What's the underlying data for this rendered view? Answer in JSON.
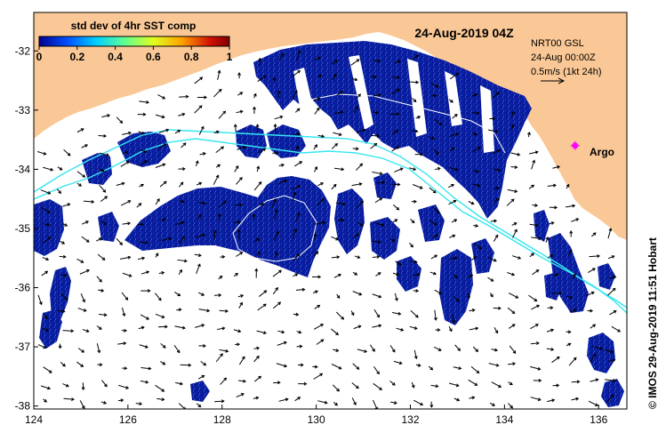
{
  "map": {
    "title": "24-Aug-2019 04Z",
    "colorbar": {
      "label": "std dev of 4hr SST comp",
      "ticks": [
        "0",
        "0.2",
        "0.4",
        "0.6",
        "0.8",
        "1"
      ],
      "range": [
        0,
        1
      ],
      "colors": [
        "#00008f",
        "#0050ff",
        "#00d0ff",
        "#60ff90",
        "#e0ff20",
        "#ffa000",
        "#d01000",
        "#800000"
      ]
    },
    "current_info": {
      "line1": "NRT00 GSL",
      "line2": "24-Aug 00:00Z",
      "line3": "0.5m/s (1kt 24h)"
    },
    "argo": {
      "label": "Argo",
      "lon": 135.5,
      "lat": -33.6,
      "color": "#ff00ff"
    },
    "credit": "© IMOS 29-Aug-2019 11:51 Hobart",
    "lon_ticks": [
      "124",
      "126",
      "128",
      "130",
      "132",
      "134",
      "136"
    ],
    "lat_ticks": [
      "-32",
      "-33",
      "-34",
      "-35",
      "-36",
      "-37",
      "-38"
    ],
    "lon_range": [
      124,
      136.6
    ],
    "lat_range": [
      -38.05,
      -31.35
    ],
    "colors": {
      "land": "#fac896",
      "data": "#0a1a9a",
      "contour": "#36e6f0",
      "ocean": "#ffffff"
    }
  }
}
